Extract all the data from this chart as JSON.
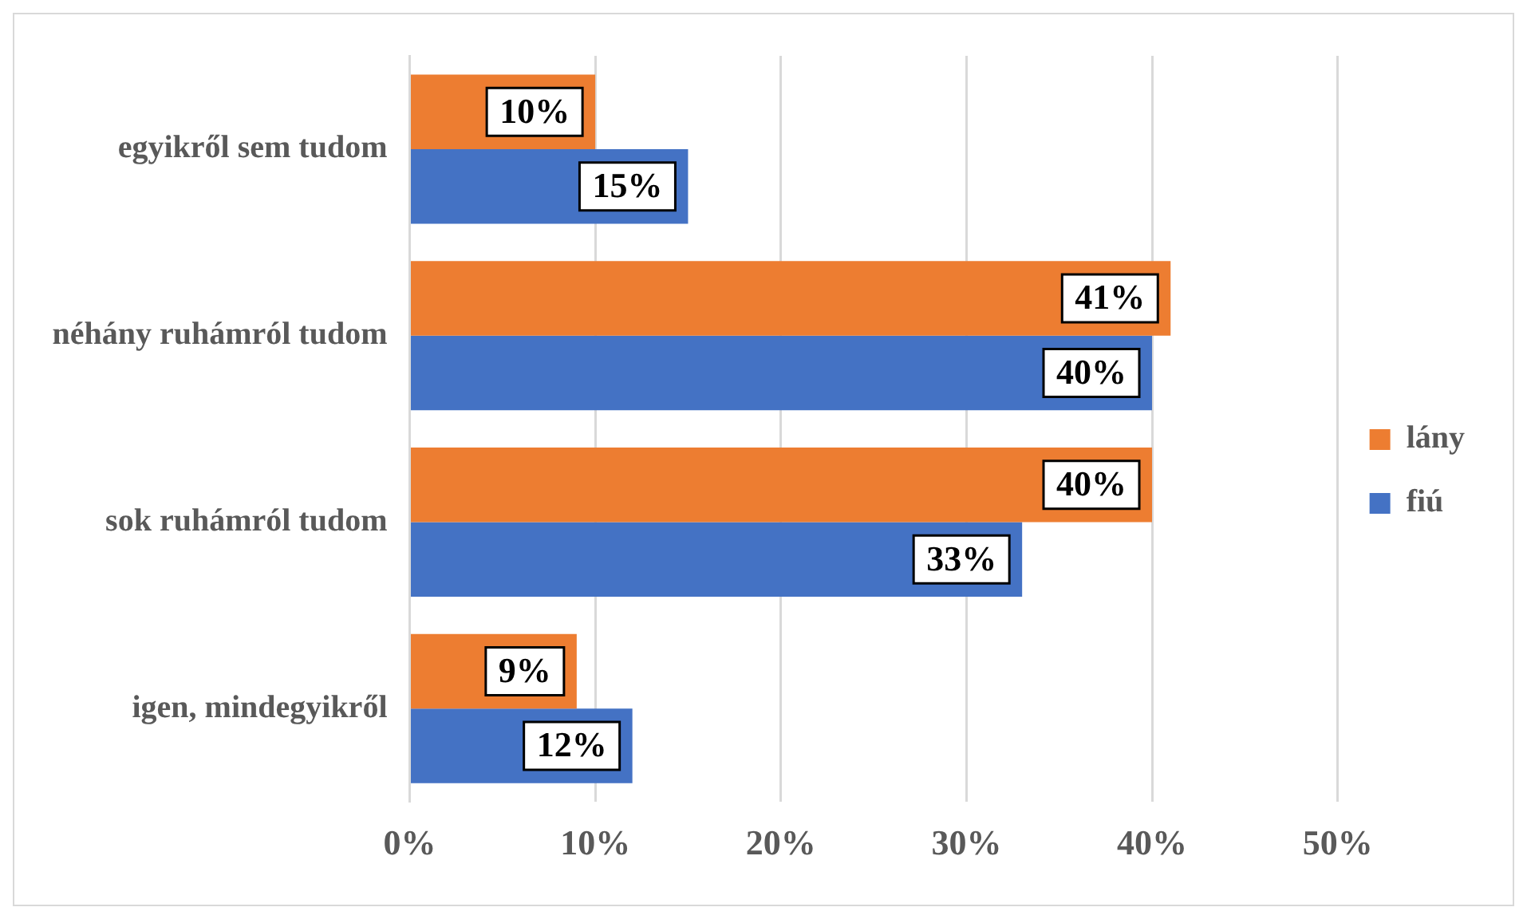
{
  "chart_data": {
    "type": "bar",
    "orientation": "horizontal",
    "categories": [
      "egyikről sem tudom",
      "néhány ruhámról tudom",
      "sok ruhámról tudom",
      "igen, mindegyikről"
    ],
    "series": [
      {
        "name": "lány",
        "color": "#ed7d31",
        "values": [
          10,
          41,
          40,
          9
        ],
        "value_labels": [
          "10%",
          "41%",
          "40%",
          "9%"
        ]
      },
      {
        "name": "fiú",
        "color": "#4472c4",
        "values": [
          15,
          40,
          33,
          12
        ],
        "value_labels": [
          "15%",
          "40%",
          "33%",
          "12%"
        ]
      }
    ],
    "xlim": [
      0,
      50
    ],
    "xticks": [
      {
        "value": 0,
        "label": "0%"
      },
      {
        "value": 10,
        "label": "10%"
      },
      {
        "value": 20,
        "label": "20%"
      },
      {
        "value": 30,
        "label": "30%"
      },
      {
        "value": 40,
        "label": "40%"
      },
      {
        "value": 50,
        "label": "50%"
      }
    ],
    "grid": "x",
    "legend": "right"
  }
}
